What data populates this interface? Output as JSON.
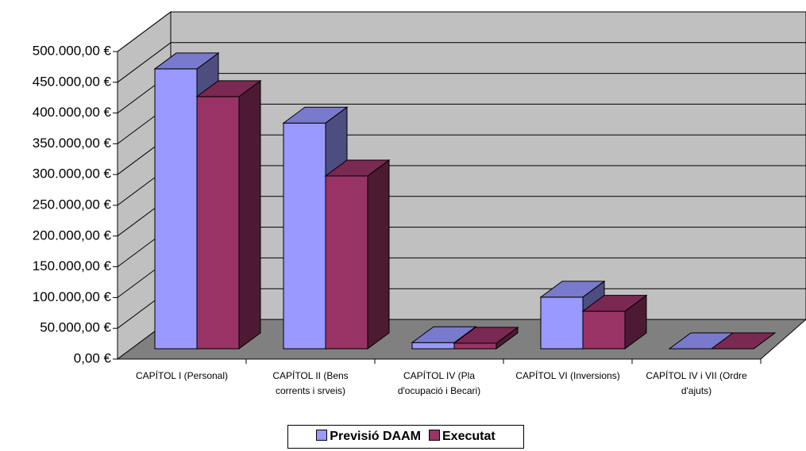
{
  "chart_data": {
    "type": "bar3d",
    "categories": [
      "CAPÍTOL I (Personal)",
      "CAPÍTOL II (Bens corrents i srveis)",
      "CAPÍTOL IV (Pla d'ocupació i Becari)",
      "CAPÍTOL VI (Inversions)",
      "CAPÍTOL IV i VII (Ordre d'ajuts)"
    ],
    "series": [
      {
        "name": "Previsió DAAM",
        "color": "#9999ff",
        "values": [
          455000,
          367000,
          10000,
          84000,
          0
        ]
      },
      {
        "name": "Executat",
        "color": "#993366",
        "values": [
          410000,
          281000,
          9000,
          61000,
          0
        ]
      }
    ],
    "ylim": [
      0,
      500000
    ],
    "yticks": [
      {
        "value": 0,
        "label": "0,00 €"
      },
      {
        "value": 50000,
        "label": "50.000,00 €"
      },
      {
        "value": 100000,
        "label": "100.000,00 €"
      },
      {
        "value": 150000,
        "label": "150.000,00 €"
      },
      {
        "value": 200000,
        "label": "200.000,00 €"
      },
      {
        "value": 250000,
        "label": "250.000,00 €"
      },
      {
        "value": 300000,
        "label": "300.000,00 €"
      },
      {
        "value": 350000,
        "label": "350.000,00 €"
      },
      {
        "value": 400000,
        "label": "400.000,00 €"
      },
      {
        "value": 450000,
        "label": "450.000,00 €"
      },
      {
        "value": 500000,
        "label": "500.000,00 €"
      }
    ],
    "grid": true,
    "legend": "bottom"
  }
}
